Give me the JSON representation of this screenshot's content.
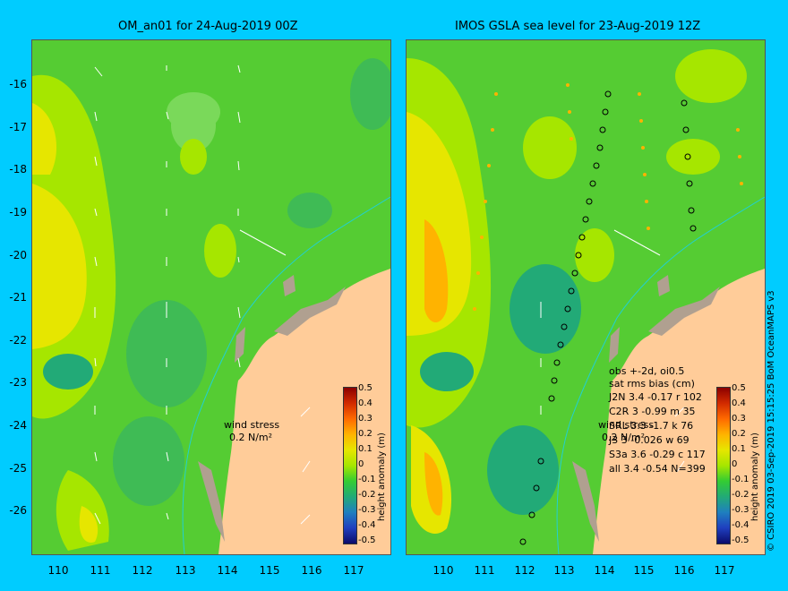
{
  "left_panel": {
    "title": "OM_an01 for 24-Aug-2019 00Z",
    "wind_label": "wind stress",
    "wind_scale": "0.2 N/m²"
  },
  "right_panel": {
    "title": "IMOS GSLA sea level  for 23-Aug-2019 12Z",
    "wind_label": "wind stress",
    "wind_scale": "0.2 N/m²",
    "obs_header": "obs +-2d, oi0.5",
    "stats_header": "sat rms bias (cm)",
    "stats": [
      "J2N 3.4 -0.17 r 102",
      "C2R   3 -0.99 m 35",
      "SRL   3.3 -1.7 k 76",
      "J3    3 -0.026 w 69",
      "S3a   3.6 -0.29 c 117",
      "all   3.4 -0.54 N=399"
    ]
  },
  "y_ticks": [
    "-16",
    "-17",
    "-18",
    "-19",
    "-20",
    "-21",
    "-22",
    "-23",
    "-24",
    "-25",
    "-26"
  ],
  "x_ticks": [
    "110",
    "111",
    "112",
    "113",
    "114",
    "115",
    "116",
    "117"
  ],
  "colorbar": {
    "title": "height anomaly (m)",
    "ticks": [
      "0.5",
      "0.4",
      "0.3",
      "0.2",
      "0.1",
      "0",
      "-0.1",
      "-0.2",
      "-0.3",
      "-0.4",
      "-0.5"
    ],
    "colors": [
      "#8b0000",
      "#d22b00",
      "#ff6a00",
      "#ffb300",
      "#e6e600",
      "#a6e600",
      "#33cc33",
      "#22aa77",
      "#1f7fbf",
      "#1f3fbf",
      "#0b0b6b"
    ]
  },
  "credit": "© CSIRO 2019   03-Sep-2019 15:15:25 BoM OceanMAPS v3",
  "colors": {
    "background": "#00ccff",
    "ocean_base": "#55cc33",
    "land": "#ffcc99",
    "coast": "#b0a090",
    "shelf": "#22d0d0"
  }
}
